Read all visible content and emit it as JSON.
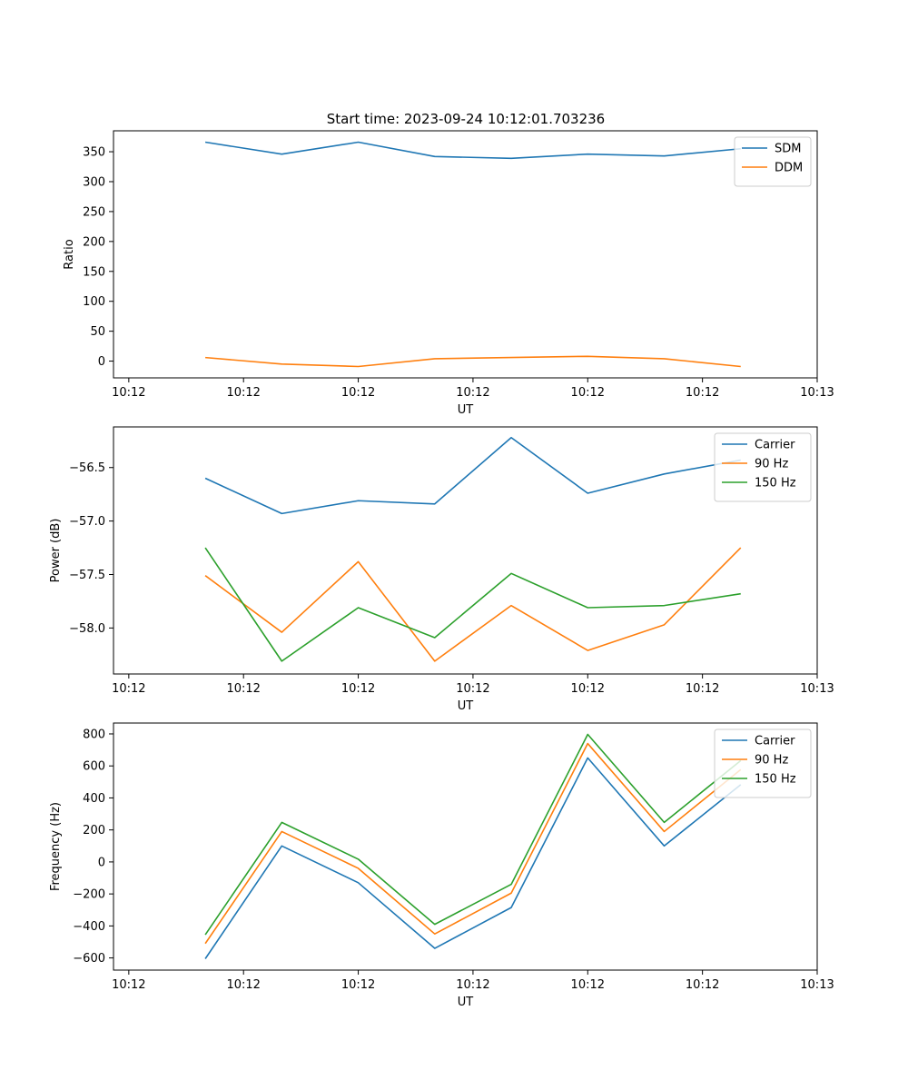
{
  "figure": {
    "title": "Start time: 2023-09-24 10:12:01.703236"
  },
  "chart_data": [
    {
      "type": "line",
      "x": [
        1,
        2,
        3,
        4,
        5,
        6,
        7,
        8
      ],
      "xticks": [
        0,
        1.5,
        3,
        4.5,
        6,
        7.5,
        9
      ],
      "xtick_labels": [
        "10:12",
        "10:12",
        "10:12",
        "10:12",
        "10:12",
        "10:12",
        "10:13"
      ],
      "xlim": [
        -0.2,
        9
      ],
      "xlabel": "UT",
      "ylabel": "Ratio",
      "ylim": [
        -28,
        385
      ],
      "yticks": [
        0,
        50,
        100,
        150,
        200,
        250,
        300,
        350
      ],
      "ytick_labels": [
        "0",
        "50",
        "100",
        "150",
        "200",
        "250",
        "300",
        "350"
      ],
      "legend": "top-right",
      "series": [
        {
          "name": "SDM",
          "color": "#1f77b4",
          "values": [
            366,
            346,
            366,
            342,
            339,
            346,
            343,
            355
          ]
        },
        {
          "name": "DDM",
          "color": "#ff7f0e",
          "values": [
            6,
            -5,
            -9,
            4,
            6,
            8,
            4,
            -9
          ]
        }
      ]
    },
    {
      "type": "line",
      "x": [
        1,
        2,
        3,
        4,
        5,
        6,
        7,
        8
      ],
      "xticks": [
        0,
        1.5,
        3,
        4.5,
        6,
        7.5,
        9
      ],
      "xtick_labels": [
        "10:12",
        "10:12",
        "10:12",
        "10:12",
        "10:12",
        "10:12",
        "10:13"
      ],
      "xlim": [
        -0.2,
        9
      ],
      "xlabel": "UT",
      "ylabel": "Power (dB)",
      "ylim": [
        -58.43,
        -56.12
      ],
      "yticks": [
        -58.0,
        -57.5,
        -57.0,
        -56.5
      ],
      "ytick_labels": [
        "−58.0",
        "−57.5",
        "−57.0",
        "−56.5"
      ],
      "legend": "top-right",
      "series": [
        {
          "name": "Carrier",
          "color": "#1f77b4",
          "values": [
            -56.6,
            -56.93,
            -56.81,
            -56.84,
            -56.22,
            -56.74,
            -56.56,
            -56.43
          ]
        },
        {
          "name": "90 Hz",
          "color": "#ff7f0e",
          "values": [
            -57.51,
            -58.04,
            -57.38,
            -58.31,
            -57.79,
            -58.21,
            -57.97,
            -57.25
          ]
        },
        {
          "name": "150 Hz",
          "color": "#2ca02c",
          "values": [
            -57.25,
            -58.31,
            -57.81,
            -58.09,
            -57.49,
            -57.81,
            -57.79,
            -57.68
          ]
        }
      ]
    },
    {
      "type": "line",
      "x": [
        1,
        2,
        3,
        4,
        5,
        6,
        7,
        8
      ],
      "xticks": [
        0,
        1.5,
        3,
        4.5,
        6,
        7.5,
        9
      ],
      "xtick_labels": [
        "10:12",
        "10:12",
        "10:12",
        "10:12",
        "10:12",
        "10:12",
        "10:13"
      ],
      "xlim": [
        -0.2,
        9
      ],
      "xlabel": "UT",
      "ylabel": "Frequency (Hz)",
      "ylim": [
        -676,
        868
      ],
      "yticks": [
        -600,
        -400,
        -200,
        0,
        200,
        400,
        600,
        800
      ],
      "ytick_labels": [
        "−600",
        "−400",
        "−200",
        "0",
        "200",
        "400",
        "600",
        "800"
      ],
      "legend": "top-right",
      "series": [
        {
          "name": "Carrier",
          "color": "#1f77b4",
          "values": [
            -605,
            100,
            -130,
            -540,
            -285,
            650,
            100,
            483
          ]
        },
        {
          "name": "90 Hz",
          "color": "#ff7f0e",
          "values": [
            -510,
            190,
            -40,
            -450,
            -195,
            740,
            190,
            577
          ]
        },
        {
          "name": "150 Hz",
          "color": "#2ca02c",
          "values": [
            -455,
            247,
            17,
            -390,
            -140,
            797,
            247,
            633
          ]
        }
      ]
    }
  ]
}
